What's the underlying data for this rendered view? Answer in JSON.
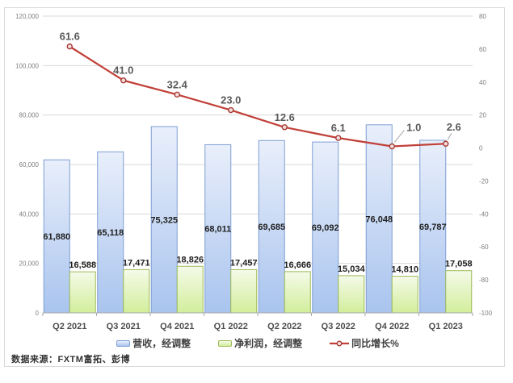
{
  "source_note": "数据来源：FXTM富拓、彭博",
  "chart_data": {
    "type": "bar",
    "subtype": "grouped bars with secondary-axis line (combo chart)",
    "title": "",
    "xlabel": "",
    "ylabel": "",
    "categories": [
      "Q2 2021",
      "Q3 2021",
      "Q4 2021",
      "Q1 2022",
      "Q2 2022",
      "Q3 2022",
      "Q4 2022",
      "Q1 2023"
    ],
    "series": [
      {
        "name": "营收，经调整",
        "chart": "bar",
        "axis": "left",
        "values": [
          61880,
          65118,
          75325,
          68011,
          69685,
          69092,
          76048,
          69787
        ],
        "labels": [
          "61,880",
          "65,118",
          "75,325",
          "68,011",
          "69,685",
          "69,092",
          "76,048",
          "69,787"
        ],
        "fill_top": "#e9effb",
        "fill_bottom": "#a9c4ee",
        "border": "#7e9ed3"
      },
      {
        "name": "净利润，经调整",
        "chart": "bar",
        "axis": "left",
        "values": [
          16588,
          17471,
          18826,
          17457,
          16666,
          15034,
          14810,
          17058
        ],
        "labels": [
          "16,588",
          "17,471",
          "18,826",
          "17,457",
          "16,666",
          "15,034",
          "14,810",
          "17,058"
        ],
        "fill_top": "#f5fae9",
        "fill_bottom": "#d2ee9b",
        "border": "#9dbb58"
      },
      {
        "name": "同比增长%",
        "chart": "line",
        "axis": "right",
        "values": [
          61.6,
          41.0,
          32.4,
          23.0,
          12.6,
          6.1,
          1.0,
          2.6
        ],
        "labels": [
          "61.6",
          "41.0",
          "32.4",
          "23.0",
          "12.6",
          "6.1",
          "1.0",
          "2.6"
        ],
        "color": "#c1413a",
        "marker_fill": "#f2dedd",
        "marker_stroke": "#a83933"
      }
    ],
    "left_axis": {
      "min": 0,
      "max": 120000,
      "step": 20000,
      "tick_labels": [
        "120,000",
        "100,000",
        "80,000",
        "60,000",
        "40,000",
        "20,000",
        "0"
      ]
    },
    "right_axis": {
      "min": -100,
      "max": 80,
      "step": 20,
      "tick_labels": [
        "80",
        "60",
        "40",
        "20",
        "0",
        "-20",
        "-40",
        "-60",
        "-80",
        "-100"
      ]
    },
    "grid": true,
    "legend_position": "bottom",
    "colors": {
      "grid": "#d9d9d9",
      "axis_line": "#a6a6a6",
      "axis_text": "#808080",
      "category_text": "#4d4d4d",
      "bar_label": "#1f1f1f",
      "line_label": "#595959",
      "leader": "#a6a6a6",
      "frame_border": "#d9d9d9"
    }
  }
}
